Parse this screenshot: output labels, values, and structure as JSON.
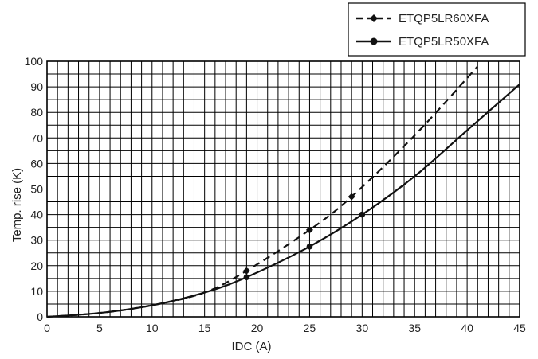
{
  "chart_data": {
    "type": "line",
    "title": "",
    "xlabel": "IDC (A)",
    "ylabel": "Temp. rise (K)",
    "xlim": [
      0,
      45
    ],
    "ylim": [
      0,
      100
    ],
    "xticks": [
      0,
      5,
      10,
      15,
      20,
      25,
      30,
      35,
      40,
      45
    ],
    "yticks": [
      0,
      10,
      20,
      30,
      40,
      50,
      60,
      70,
      80,
      90,
      100
    ],
    "x_minor_step": 1,
    "y_minor_step": 5,
    "grid": true,
    "legend_position": "top-right-outside",
    "series": [
      {
        "name": "ETQP5LR60XFA",
        "style": "dashed",
        "marker": "diamond",
        "color": "#111111",
        "x": [
          0,
          5,
          10,
          15,
          19,
          25,
          29,
          35,
          41
        ],
        "y": [
          0,
          1.5,
          4.5,
          9.5,
          18,
          34,
          47,
          71,
          98
        ]
      },
      {
        "name": "ETQP5LR50XFA",
        "style": "solid",
        "marker": "circle",
        "color": "#111111",
        "x": [
          0,
          5,
          10,
          15,
          19,
          25,
          30,
          35,
          40,
          45
        ],
        "y": [
          0,
          1.5,
          4.5,
          9.5,
          15.5,
          27.5,
          40,
          55,
          73,
          91
        ]
      }
    ],
    "markers": [
      {
        "series": 0,
        "x": [
          19,
          25,
          29
        ]
      },
      {
        "series": 1,
        "x": [
          19,
          25,
          30
        ]
      }
    ]
  }
}
